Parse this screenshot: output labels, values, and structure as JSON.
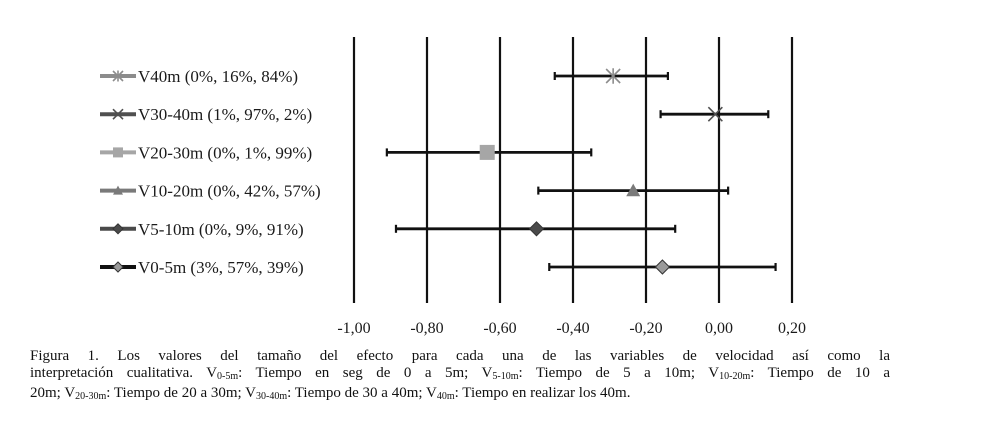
{
  "chart_data": {
    "type": "forest",
    "xlim": [
      -1.0,
      0.2
    ],
    "x_ticks": [
      -1.0,
      -0.8,
      -0.6,
      -0.4,
      -0.2,
      0.0,
      0.2
    ],
    "x_tick_labels": [
      "-1,00",
      "-0,80",
      "-0,60",
      "-0,40",
      "-0,20",
      "0,00",
      "0,20"
    ],
    "grid": "vertical",
    "legend_position": "left",
    "series": [
      {
        "name": "V40m (0%, 16%, 84%)",
        "value": -0.29,
        "ci_low": -0.45,
        "ci_high": -0.14,
        "marker": "asterisk",
        "color": "#8c8c8c"
      },
      {
        "name": "V30-40m (1%, 97%, 2%)",
        "value": -0.01,
        "ci_low": -0.16,
        "ci_high": 0.135,
        "marker": "x",
        "color": "#505050"
      },
      {
        "name": "V20-30m (0%, 1%, 99%)",
        "value": -0.635,
        "ci_low": -0.91,
        "ci_high": -0.35,
        "marker": "square",
        "color": "#a6a6a6"
      },
      {
        "name": "V10-20m (0%, 42%, 57%)",
        "value": -0.235,
        "ci_low": -0.495,
        "ci_high": 0.025,
        "marker": "triangle",
        "color": "#7a7a7a"
      },
      {
        "name": "V5-10m (0%, 9%, 91%)",
        "value": -0.5,
        "ci_low": -0.885,
        "ci_high": -0.12,
        "marker": "diamond",
        "color": "#4a4a4a"
      },
      {
        "name": "V0-5m (3%, 57%, 39%)",
        "value": -0.155,
        "ci_low": -0.465,
        "ci_high": 0.155,
        "marker": "diamond",
        "color": "#9a9a9a"
      }
    ]
  },
  "caption": {
    "line1": "Figura 1. Los valores del tamaño del efecto para cada una de las variables de velocidad así como la",
    "line2_a": "interpretación cualitativa. V",
    "line2_s1": "0-5m",
    "line2_b": ": Tiempo en seg de 0 a 5m; V",
    "line2_s2": "5-10m",
    "line2_c": ": Tiempo de 5 a 10m; V",
    "line2_s3": "10-20m",
    "line2_d": ": Tiempo de 10 a",
    "line3_a": "20m; V",
    "line3_s1": "20-30m",
    "line3_b": ": Tiempo de 20 a 30m; V",
    "line3_s2": "30-40m",
    "line3_c": ": Tiempo de 30 a 40m; V",
    "line3_s3": "40m",
    "line3_d": ": Tiempo en realizar los 40m."
  }
}
